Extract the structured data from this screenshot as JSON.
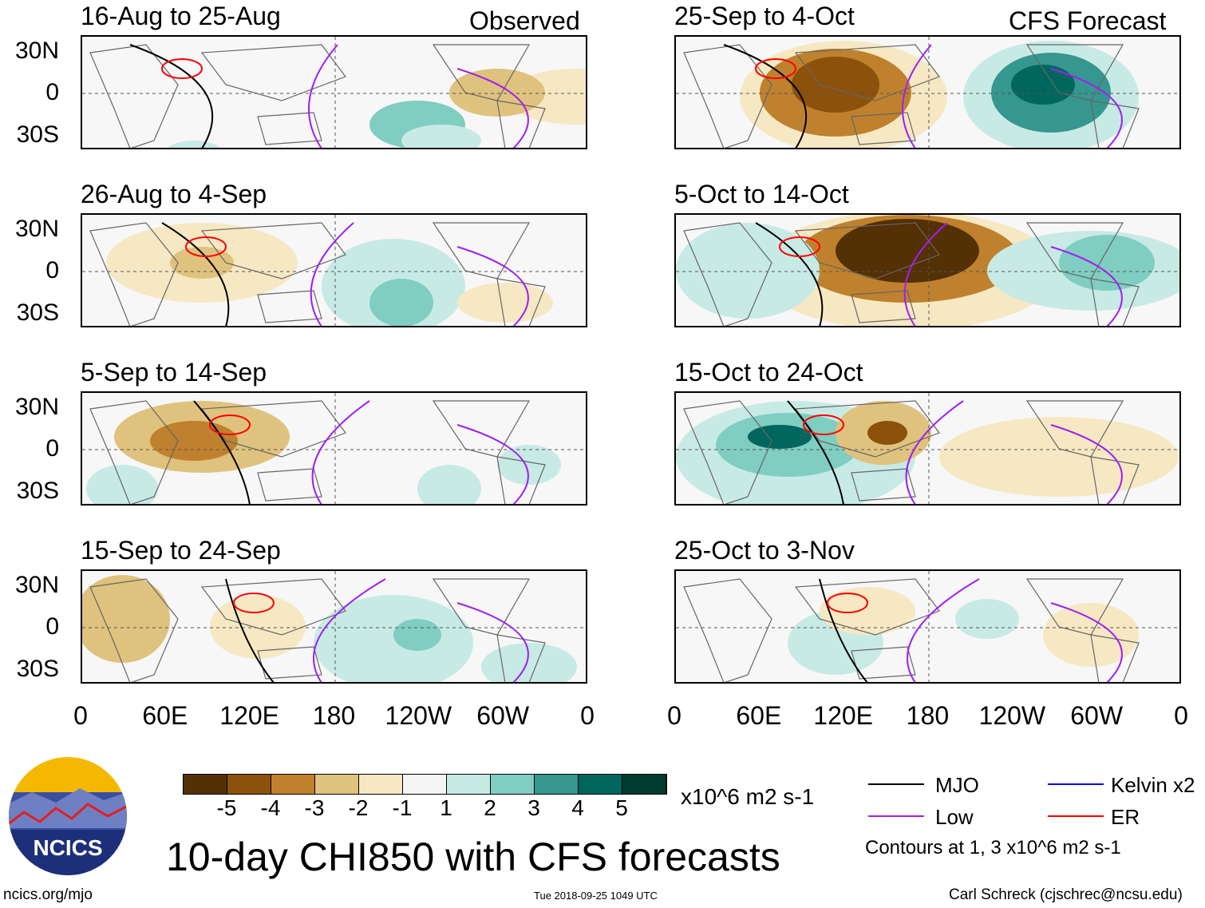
{
  "figure": {
    "title": "10-day CHI850 with CFS forecasts",
    "logo_text": "NCICS",
    "url": "ncics.org/mjo",
    "timestamp": "Tue 2018-09-25 1049 UTC",
    "author": "Carl Schreck (cjschrec@ncsu.edu)"
  },
  "columns": {
    "observed": "Observed",
    "forecast": "CFS Forecast"
  },
  "panels": {
    "observed": [
      "16-Aug to 25-Aug",
      "26-Aug to 4-Sep",
      "5-Sep to 14-Sep",
      "15-Sep to 24-Sep"
    ],
    "forecast": [
      "25-Sep to 4-Oct",
      "5-Oct to 14-Oct",
      "15-Oct to 24-Oct",
      "25-Oct to 3-Nov"
    ]
  },
  "axes": {
    "lat_labels": [
      "30N",
      "0",
      "30S"
    ],
    "lon_labels": [
      "0",
      "60E",
      "120E",
      "180",
      "120W",
      "60W",
      "0"
    ]
  },
  "colorbar": {
    "labels": [
      "-5",
      "-4",
      "-3",
      "-2",
      "-1",
      "1",
      "2",
      "3",
      "4",
      "5"
    ],
    "colors": [
      "#543005",
      "#8c510a",
      "#bf812d",
      "#dfc27d",
      "#f6e8c3",
      "#f5f5f5",
      "#c7eae5",
      "#80cdc1",
      "#35978f",
      "#01665e",
      "#003c30"
    ],
    "units": "x10^6 m2 s-1"
  },
  "legend": {
    "items": [
      {
        "label": "MJO",
        "color": "#000000"
      },
      {
        "label": "Kelvin x2",
        "color": "#0000ff"
      },
      {
        "label": "Low",
        "color": "#a020f0"
      },
      {
        "label": "ER",
        "color": "#ff0000"
      }
    ],
    "note": "Contours at 1, 3 x10^6 m2 s-1"
  }
}
